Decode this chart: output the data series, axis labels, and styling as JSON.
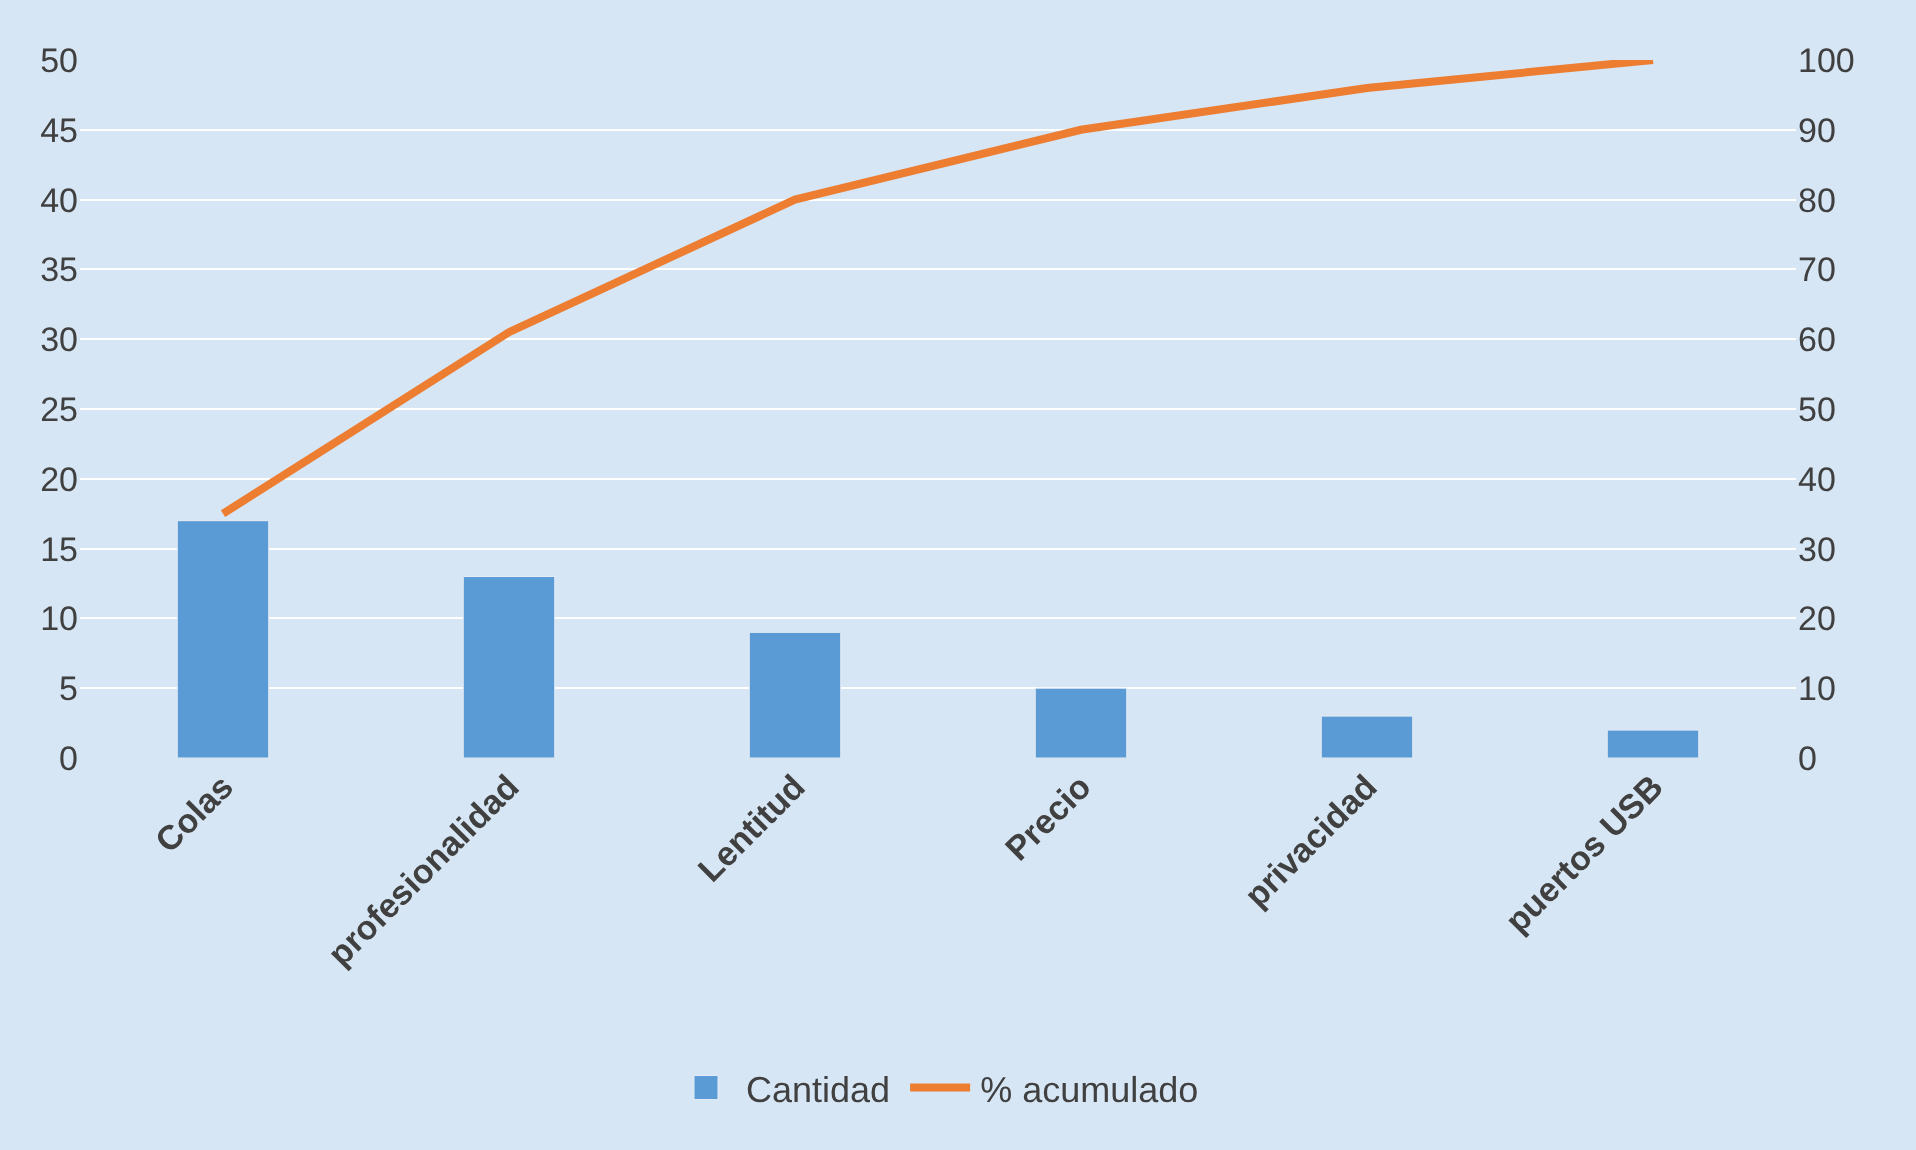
{
  "chart_data": {
    "type": "bar",
    "categories": [
      "Colas",
      "profesionalidad",
      "Lentitud",
      "Precio",
      "privacidad",
      "puertos USB"
    ],
    "series": [
      {
        "name": "Cantidad",
        "color": "#5b9bd5",
        "values": [
          17,
          13,
          9,
          5,
          3,
          2
        ]
      },
      {
        "name": "% acumulado",
        "type": "line",
        "axis": "y2",
        "color": "#ed7d31",
        "values": [
          35,
          61,
          80,
          90,
          96,
          100
        ]
      }
    ],
    "ylim": [
      0,
      50
    ],
    "yticks": [
      0,
      5,
      10,
      15,
      20,
      25,
      30,
      35,
      40,
      45,
      50
    ],
    "y2lim": [
      0,
      100
    ],
    "y2ticks": [
      0,
      10,
      20,
      30,
      40,
      50,
      60,
      70,
      80,
      90,
      100
    ],
    "grid": "y",
    "legend": "bottom",
    "marker": "none",
    "line_style": "solid"
  }
}
